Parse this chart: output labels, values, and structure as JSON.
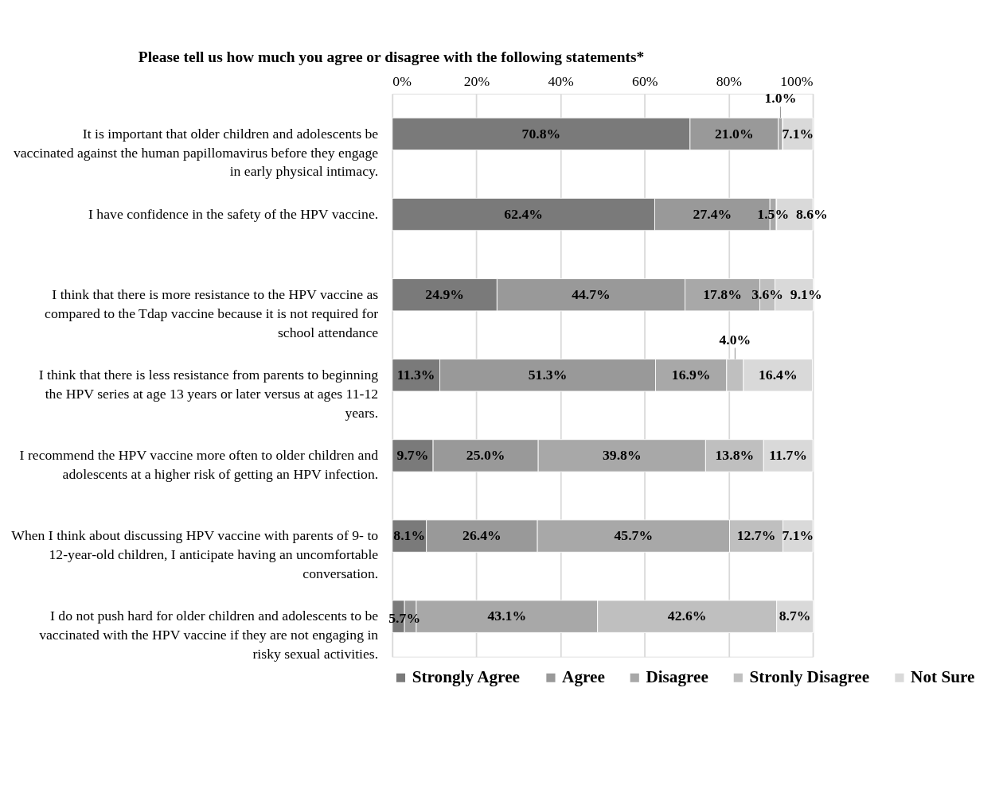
{
  "chart_data": {
    "type": "bar",
    "orientation": "horizontal",
    "stacked": true,
    "title": "Please tell us how much you agree or disagree with the following statements*",
    "categories": [
      "It is important that older children and adolescents be vaccinated against the human papillomavirus before they engage in early physical intimacy.",
      "I have confidence in the safety of the HPV vaccine.",
      "I think that there is more resistance to the HPV vaccine as compared to the Tdap vaccine because it is not required for school attendance",
      "I think that there is less resistance from parents to beginning the HPV series at age 13 years or later versus at ages 11-12 years.",
      "I recommend the HPV vaccine more often to older children and adolescents at a higher risk of getting an HPV infection.",
      "When I think about discussing HPV vaccine with parents of 9- to 12-year-old children, I anticipate having an uncomfortable conversation.",
      "I do not push hard for older children and adolescents to be vaccinated with the HPV vaccine if they are not engaging in risky sexual activities."
    ],
    "series": [
      {
        "name": "Strongly Agree",
        "color": "#7a7a7a",
        "values": [
          70.8,
          62.4,
          24.9,
          11.3,
          9.7,
          8.1,
          2.9
        ],
        "value_labels": [
          "70.8%",
          "62.4%",
          "24.9%",
          "11.3%",
          "9.7%",
          "8.1%",
          null
        ]
      },
      {
        "name": "Agree",
        "color": "#999999",
        "values": [
          21.0,
          27.4,
          44.7,
          51.3,
          25.0,
          26.4,
          2.8
        ],
        "value_labels": [
          "21.0%",
          "27.4%",
          "44.7%",
          "51.3%",
          "25.0%",
          "26.4%",
          null
        ]
      },
      {
        "name": "Disagree",
        "color": "#a8a8a8",
        "values": [
          1.0,
          1.5,
          17.8,
          16.9,
          39.8,
          45.7,
          43.1
        ],
        "value_labels": [
          "1.0%",
          "1.5%",
          "17.8%",
          "16.9%",
          "39.8%",
          "45.7%",
          "43.1%"
        ]
      },
      {
        "name": "Stronly Disagree",
        "color": "#bfbfbf",
        "values": [
          0.1,
          0.1,
          3.6,
          4.0,
          13.8,
          12.7,
          42.6
        ],
        "value_labels": [
          null,
          null,
          "3.6%",
          "4.0%",
          "13.8%",
          "12.7%",
          "42.6%"
        ]
      },
      {
        "name": "Not Sure",
        "color": "#d9d9d9",
        "values": [
          7.1,
          8.6,
          9.1,
          16.4,
          11.7,
          7.1,
          8.7
        ],
        "value_labels": [
          "7.1%",
          "8.6%",
          "9.1%",
          "16.4%",
          "11.7%",
          "7.1%",
          "8.7%"
        ]
      }
    ],
    "xlim": [
      0,
      100
    ],
    "xticks": [
      {
        "value": 0,
        "label": "0%"
      },
      {
        "value": 20,
        "label": "20%"
      },
      {
        "value": 40,
        "label": "40%"
      },
      {
        "value": 60,
        "label": "60%"
      },
      {
        "value": 80,
        "label": "80%"
      },
      {
        "value": 100,
        "label": "100%"
      }
    ],
    "grid": "x",
    "legend": "bottom",
    "annotations": [
      {
        "text": "5.7%",
        "x": 2.9,
        "y": "I do not push hard for older children and adolescents to be vaccinated with the HPV vaccine if they are not engaging in risky sexual activities."
      }
    ]
  }
}
